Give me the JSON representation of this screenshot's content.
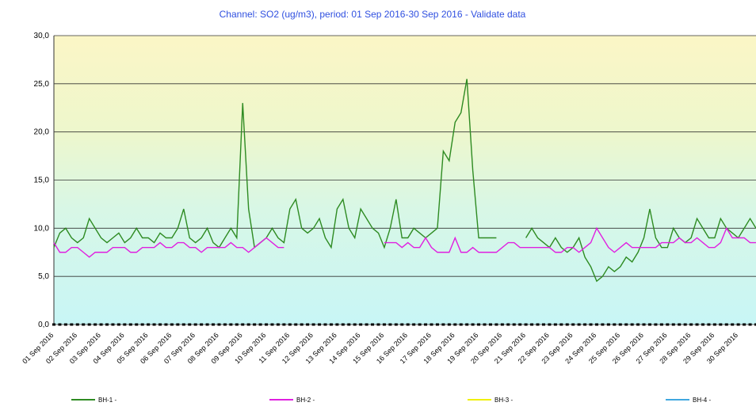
{
  "chart_data": {
    "type": "line",
    "title": "Channel: SO2 (ug/m3), period: 01 Sep 2016-30 Sep 2016 - Validate data",
    "categories": [
      "01 Sep 2016",
      null,
      null,
      null,
      "02 Sep 2016",
      null,
      null,
      null,
      "03 Sep 2016",
      null,
      null,
      null,
      "04 Sep 2016",
      null,
      null,
      null,
      "05 Sep 2016",
      null,
      null,
      null,
      "06 Sep 2016",
      null,
      null,
      null,
      "07 Sep 2016",
      null,
      null,
      null,
      "08 Sep 2016",
      null,
      null,
      null,
      "09 Sep 2016",
      null,
      null,
      null,
      "10 Sep 2016",
      null,
      null,
      null,
      "11 Sep 2016",
      null,
      null,
      null,
      "12 Sep 2016",
      null,
      null,
      null,
      "13 Sep 2016",
      null,
      null,
      null,
      "14 Sep 2016",
      null,
      null,
      null,
      "15 Sep 2016",
      null,
      null,
      null,
      "16 Sep 2016",
      null,
      null,
      null,
      "17 Sep 2016",
      null,
      null,
      null,
      "18 Sep 2016",
      null,
      null,
      null,
      "19 Sep 2016",
      null,
      null,
      null,
      "20 Sep 2016",
      null,
      null,
      null,
      "21 Sep 2016",
      null,
      null,
      null,
      "22 Sep 2016",
      null,
      null,
      null,
      "23 Sep 2016",
      null,
      null,
      null,
      "24 Sep 2016",
      null,
      null,
      null,
      "25 Sep 2016",
      null,
      null,
      null,
      "26 Sep 2016",
      null,
      null,
      null,
      "27 Sep 2016",
      null,
      null,
      null,
      "28 Sep 2016",
      null,
      null,
      null,
      "29 Sep 2016",
      null,
      null,
      null,
      "30 Sep 2016",
      null,
      null,
      null
    ],
    "series": [
      {
        "name": "BH-1 -",
        "color": "#2e8b22",
        "values": [
          8,
          9.5,
          10,
          9,
          8.5,
          9,
          11,
          10,
          9,
          8.5,
          9,
          9.5,
          8.5,
          9,
          10,
          9,
          9,
          8.5,
          9.5,
          9,
          9,
          10,
          12,
          9,
          8.5,
          9,
          10,
          8.5,
          8,
          9,
          10,
          9,
          23,
          12,
          8,
          8.5,
          9,
          10,
          9,
          8.5,
          12,
          13,
          10,
          9.5,
          10,
          11,
          9,
          8,
          12,
          13,
          10,
          9,
          12,
          11,
          10,
          9.5,
          8,
          10,
          13,
          9,
          9,
          10,
          9.5,
          9,
          9.5,
          10,
          18,
          17,
          21,
          22,
          25.5,
          16,
          9,
          9,
          9,
          9,
          null,
          null,
          null,
          null,
          9,
          10,
          9,
          8.5,
          8,
          9,
          8,
          7.5,
          8,
          9,
          7,
          6,
          4.5,
          5,
          6,
          5.5,
          6,
          7,
          6.5,
          7.5,
          9,
          12,
          9,
          8,
          8,
          10,
          9,
          8.5,
          9,
          11,
          10,
          9,
          9,
          11,
          10,
          9.5,
          9,
          10,
          11,
          10
        ]
      },
      {
        "name": "BH-2 -",
        "color": "#e020e0",
        "values": [
          8.5,
          7.5,
          7.5,
          8,
          8,
          7.5,
          7,
          7.5,
          7.5,
          7.5,
          8,
          8,
          8,
          7.5,
          7.5,
          8,
          8,
          8,
          8.5,
          8,
          8,
          8.5,
          8.5,
          8,
          8,
          7.5,
          8,
          8,
          8,
          8,
          8.5,
          8,
          8,
          7.5,
          8,
          8.5,
          9,
          8.5,
          8,
          8,
          null,
          null,
          null,
          null,
          null,
          null,
          null,
          null,
          null,
          null,
          null,
          null,
          null,
          null,
          null,
          null,
          8.5,
          8.5,
          8.5,
          8,
          8.5,
          8,
          8,
          9,
          8,
          7.5,
          7.5,
          7.5,
          9,
          7.5,
          7.5,
          8,
          7.5,
          7.5,
          7.5,
          7.5,
          8,
          8.5,
          8.5,
          8,
          8,
          8,
          8,
          8,
          8,
          7.5,
          7.5,
          8,
          8,
          7.5,
          8,
          8.5,
          10,
          9,
          8,
          7.5,
          8,
          8.5,
          8,
          8,
          8,
          8,
          8,
          8.5,
          8.5,
          8.5,
          9,
          8.5,
          8.5,
          9,
          8.5,
          8,
          8,
          8.5,
          10,
          9,
          9,
          9,
          8.5,
          8.5
        ]
      },
      {
        "name": "BH-3 -",
        "color": "#f0f000",
        "values": [
          0,
          0,
          0,
          0,
          0,
          0,
          0,
          0,
          0,
          0,
          0,
          0,
          0,
          0,
          0,
          0,
          0,
          0,
          0,
          0,
          0,
          0,
          0,
          0,
          0,
          0,
          0,
          0,
          0,
          0,
          0,
          0,
          0,
          0,
          0,
          0,
          0,
          0,
          0,
          0,
          0,
          0,
          0,
          0,
          0,
          0,
          0,
          0,
          0,
          0,
          0,
          0,
          0,
          0,
          0,
          0,
          0,
          0,
          0,
          0,
          0,
          0,
          0,
          0,
          0,
          0,
          0,
          0,
          0,
          0,
          0,
          0,
          0,
          0,
          0,
          0,
          0,
          0,
          0,
          0,
          0,
          0,
          0,
          0,
          0,
          0,
          0,
          0,
          0,
          0,
          0,
          0,
          0,
          0,
          0,
          0,
          0,
          0,
          0,
          0,
          0,
          0,
          0,
          0,
          0,
          0,
          0,
          0,
          0,
          0,
          0,
          0,
          0,
          0,
          0,
          0,
          0,
          0,
          0,
          0
        ]
      },
      {
        "name": "BH-4 -",
        "color": "#40a8e0",
        "values": [
          null,
          null,
          null,
          null,
          null,
          null,
          null,
          null,
          null,
          null,
          null,
          null,
          null,
          null,
          null,
          null,
          null,
          null,
          null,
          null,
          null,
          null,
          null,
          null,
          null,
          null,
          null,
          null,
          null,
          null,
          null,
          null,
          null,
          null,
          null,
          null,
          null,
          null,
          null,
          null,
          null,
          null,
          null,
          null,
          null,
          null,
          null,
          null,
          null,
          null,
          null,
          null,
          null,
          null,
          null,
          null,
          null,
          null,
          null,
          null,
          null,
          null,
          null,
          null,
          null,
          null,
          null,
          null,
          null,
          null,
          null,
          null,
          null,
          null,
          null,
          null,
          null,
          null,
          null,
          null,
          null,
          null,
          null,
          null,
          null,
          null,
          null,
          null,
          null,
          null,
          null,
          null,
          null,
          null,
          null,
          null,
          null,
          null,
          null,
          null,
          null,
          null,
          null,
          null,
          null,
          null,
          null,
          null,
          null,
          null,
          null,
          null,
          null,
          null,
          null,
          null,
          null,
          null,
          null,
          null
        ]
      }
    ],
    "ylim": [
      0,
      30
    ],
    "yticks": [
      {
        "value": 0,
        "label": "0,0"
      },
      {
        "value": 5,
        "label": "5,0"
      },
      {
        "value": 10,
        "label": "10,0"
      },
      {
        "value": 15,
        "label": "15,0"
      },
      {
        "value": 20,
        "label": "20,0"
      },
      {
        "value": 25,
        "label": "25,0"
      },
      {
        "value": 30,
        "label": "30,0"
      }
    ],
    "grid": true
  }
}
